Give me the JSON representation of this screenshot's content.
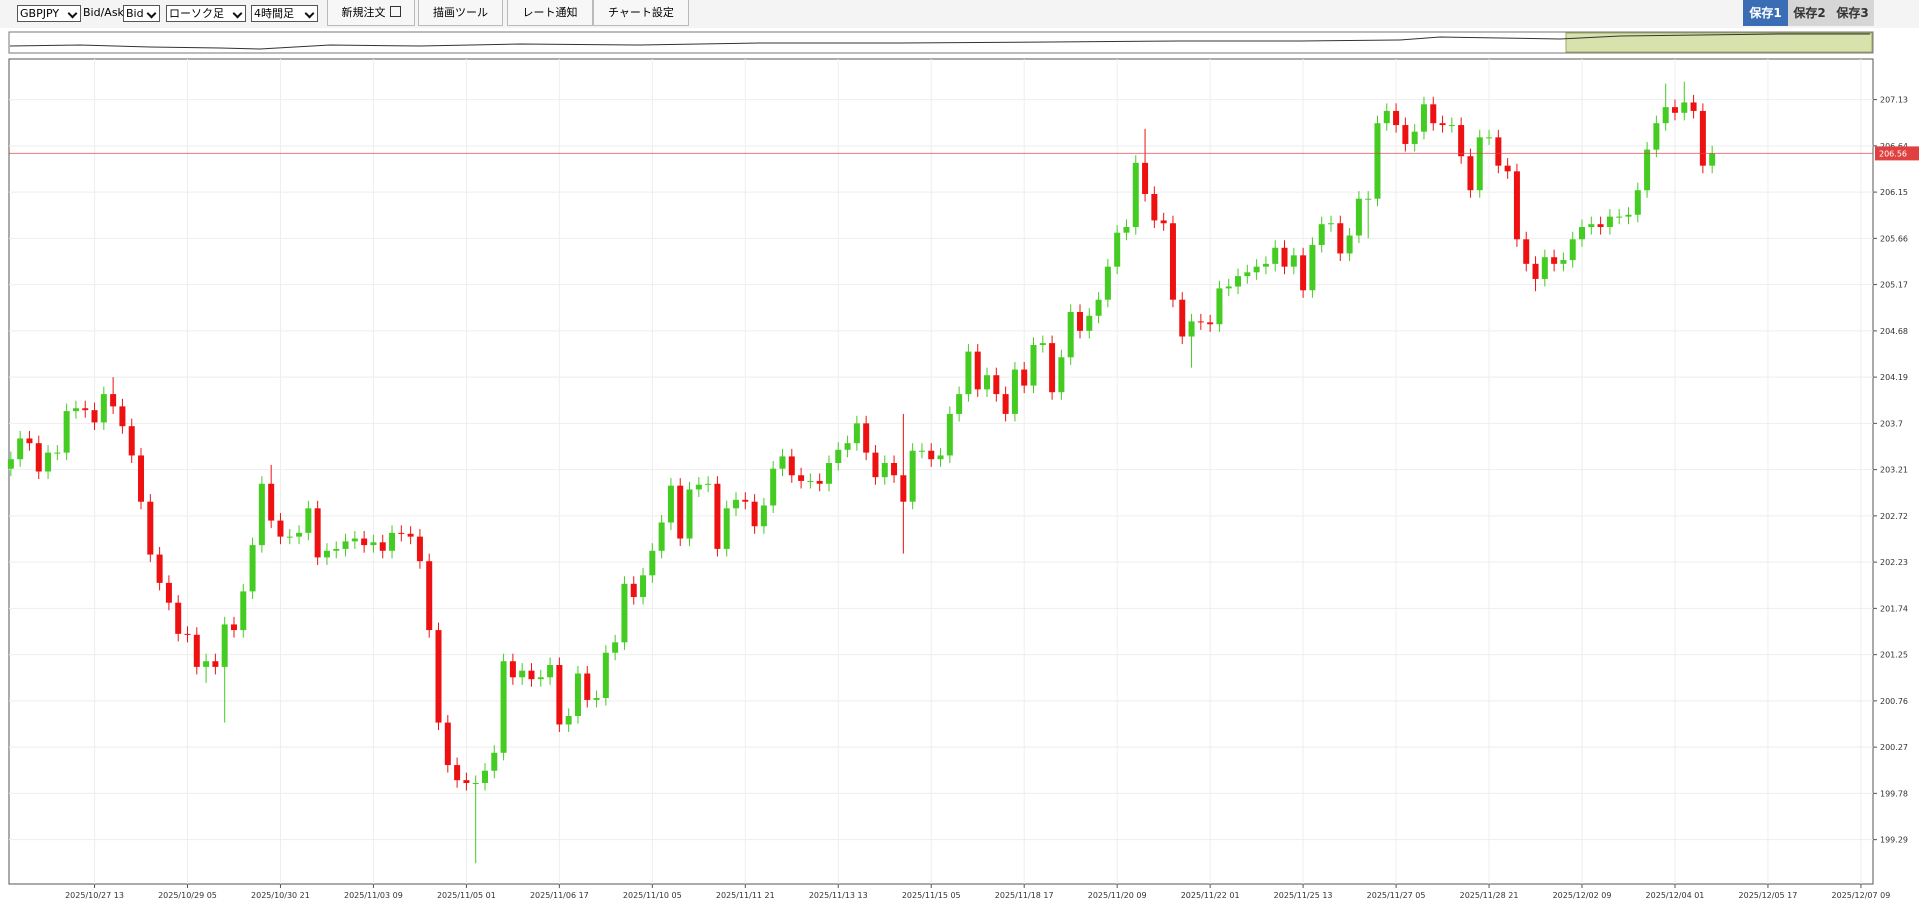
{
  "toolbar": {
    "symbol": "GBPJPY",
    "price_type_label": "Bid/Ask",
    "price_type": "Bid",
    "chart_style": "ローソク足",
    "timeframe": "4時間足",
    "buttons": [
      "新規注文",
      "描画ツール",
      "レート通知",
      "チャート設定"
    ],
    "saves": [
      "保存1",
      "保存2",
      "保存3"
    ]
  },
  "chart_data": {
    "type": "candlestick",
    "up_color": "#44cc22",
    "down_color": "#ee1111",
    "grid": true,
    "current_price": 206.56,
    "current_price_color": "#e04040",
    "ylim": [
      198.82,
      207.56
    ],
    "yticks": [
      199.29,
      199.78,
      200.27,
      200.76,
      201.25,
      201.74,
      202.23,
      202.72,
      203.21,
      203.7,
      204.19,
      204.68,
      205.17,
      205.66,
      206.15,
      206.64,
      207.13
    ],
    "xlim": [
      -0.2,
      200.3
    ],
    "xticks": [
      {
        "value": 9,
        "label": "2025/10/27 13"
      },
      {
        "value": 19,
        "label": "2025/10/29 05"
      },
      {
        "value": 29,
        "label": "2025/10/30 21"
      },
      {
        "value": 39,
        "label": "2025/11/03 09"
      },
      {
        "value": 49,
        "label": "2025/11/05 01"
      },
      {
        "value": 59,
        "label": "2025/11/06 17"
      },
      {
        "value": 69,
        "label": "2025/11/10 05"
      },
      {
        "value": 79,
        "label": "2025/11/11 21"
      },
      {
        "value": 89,
        "label": "2025/11/13 13"
      },
      {
        "value": 99,
        "label": "2025/11/15 05"
      },
      {
        "value": 109,
        "label": "2025/11/18 17"
      },
      {
        "value": 119,
        "label": "2025/11/20 09"
      },
      {
        "value": 129,
        "label": "2025/11/22 01"
      },
      {
        "value": 139,
        "label": "2025/11/25 13"
      },
      {
        "value": 149,
        "label": "2025/11/27 05"
      },
      {
        "value": 159,
        "label": "2025/11/28 21"
      },
      {
        "value": 169,
        "label": "2025/12/02 09"
      },
      {
        "value": 179,
        "label": "2025/12/04 01"
      },
      {
        "value": 189,
        "label": "2025/12/05 17"
      },
      {
        "value": 199,
        "label": "2025/12/07 09"
      }
    ],
    "open": [
      203.22,
      203.32,
      203.54,
      203.49,
      203.19,
      203.39,
      203.39,
      203.83,
      203.86,
      203.84,
      203.71,
      204.01,
      203.88,
      203.67,
      203.36,
      202.87,
      202.31,
      202.01,
      201.8,
      201.47,
      201.46,
      201.12,
      201.18,
      201.12,
      201.57,
      201.51,
      201.92,
      202.41,
      203.06,
      202.67,
      202.5,
      202.5,
      202.54,
      202.8,
      202.28,
      202.35,
      202.37,
      202.45,
      202.48,
      202.41,
      202.44,
      202.35,
      202.54,
      202.53,
      202.5,
      202.24,
      201.51,
      200.53,
      200.08,
      199.92,
      199.89,
      199.89,
      200.02,
      200.21,
      201.18,
      201.01,
      201.08,
      200.99,
      201.01,
      201.14,
      200.51,
      200.6,
      201.05,
      200.77,
      200.79,
      201.27,
      201.38,
      202.0,
      201.86,
      202.09,
      202.35,
      202.65,
      203.04,
      202.48,
      203.0,
      203.05,
      203.06,
      202.37,
      202.8,
      202.89,
      202.87,
      202.61,
      202.83,
      203.22,
      203.35,
      203.15,
      203.09,
      203.09,
      203.06,
      203.28,
      203.42,
      203.49,
      203.7,
      203.39,
      203.13,
      203.28,
      203.15,
      202.87,
      203.41,
      203.41,
      203.32,
      203.36,
      203.8,
      204.01,
      204.46,
      204.06,
      204.21,
      204.01,
      203.8,
      204.27,
      204.1,
      204.53,
      204.55,
      204.03,
      204.4,
      204.88,
      204.68,
      204.84,
      205.01,
      205.36,
      205.72,
      205.78,
      206.46,
      206.13,
      205.85,
      205.82,
      205.01,
      204.62,
      204.78,
      204.77,
      204.75,
      205.13,
      205.15,
      205.26,
      205.3,
      205.36,
      205.39,
      205.56,
      205.36,
      205.48,
      205.11,
      205.59,
      205.81,
      205.82,
      205.5,
      205.69,
      206.08,
      206.08,
      206.88,
      207.01,
      206.86,
      206.66,
      206.79,
      207.08,
      206.88,
      206.86,
      206.86,
      206.53,
      206.17,
      206.73,
      206.73,
      206.43,
      206.37,
      205.65,
      205.39,
      205.23,
      205.46,
      205.39,
      205.43,
      205.65,
      205.78,
      205.81,
      205.78,
      205.89,
      205.89,
      205.91,
      206.17,
      206.6,
      206.88,
      207.05,
      206.99,
      207.1,
      207.01,
      206.43
    ],
    "high": [
      203.4,
      203.62,
      203.62,
      203.57,
      203.47,
      203.47,
      203.91,
      203.94,
      203.94,
      203.92,
      204.09,
      204.19,
      203.96,
      203.75,
      203.44,
      202.95,
      202.39,
      202.09,
      201.88,
      201.55,
      201.54,
      201.26,
      201.26,
      201.65,
      201.65,
      202.0,
      202.49,
      203.14,
      203.26,
      202.75,
      202.58,
      202.62,
      202.88,
      202.88,
      202.43,
      202.45,
      202.53,
      202.56,
      202.56,
      202.52,
      202.52,
      202.62,
      202.62,
      202.61,
      202.58,
      202.32,
      201.59,
      200.61,
      200.16,
      200.0,
      199.97,
      200.1,
      200.29,
      201.26,
      201.26,
      201.16,
      201.16,
      201.09,
      201.22,
      201.22,
      200.68,
      201.13,
      201.13,
      200.87,
      201.35,
      201.46,
      202.08,
      202.08,
      202.17,
      202.43,
      202.73,
      203.12,
      203.12,
      203.08,
      203.13,
      203.14,
      203.14,
      202.88,
      202.97,
      202.97,
      202.95,
      202.91,
      203.3,
      203.43,
      203.43,
      203.23,
      203.17,
      203.17,
      203.36,
      203.5,
      203.57,
      203.78,
      203.78,
      203.47,
      203.36,
      203.36,
      203.8,
      203.49,
      203.49,
      203.49,
      203.44,
      203.88,
      204.09,
      204.54,
      204.54,
      204.29,
      204.29,
      204.09,
      204.35,
      204.35,
      204.61,
      204.63,
      204.63,
      204.48,
      204.96,
      204.96,
      204.92,
      205.09,
      205.44,
      205.8,
      205.86,
      206.54,
      206.82,
      206.21,
      205.93,
      205.9,
      205.09,
      204.86,
      204.86,
      204.85,
      205.21,
      205.23,
      205.34,
      205.38,
      205.44,
      205.47,
      205.64,
      205.64,
      205.56,
      205.56,
      205.67,
      205.89,
      205.9,
      205.9,
      205.77,
      206.16,
      206.16,
      206.96,
      207.09,
      207.09,
      206.94,
      206.87,
      207.16,
      207.16,
      206.96,
      206.94,
      206.94,
      206.61,
      206.81,
      206.81,
      206.81,
      206.51,
      206.45,
      205.73,
      205.47,
      205.54,
      205.54,
      205.51,
      205.73,
      205.86,
      205.89,
      205.89,
      205.97,
      205.97,
      205.99,
      206.25,
      206.68,
      206.96,
      207.3,
      207.13,
      207.32,
      207.18,
      207.09,
      206.64
    ],
    "low": [
      203.14,
      203.24,
      203.41,
      203.11,
      203.11,
      203.31,
      203.31,
      203.75,
      203.76,
      203.63,
      203.63,
      203.8,
      203.59,
      203.28,
      202.79,
      202.23,
      201.93,
      201.72,
      201.39,
      201.38,
      201.04,
      200.95,
      201.04,
      200.53,
      201.43,
      201.43,
      201.84,
      202.33,
      202.59,
      202.42,
      202.42,
      202.42,
      202.46,
      202.2,
      202.2,
      202.27,
      202.29,
      202.37,
      202.33,
      202.33,
      202.27,
      202.27,
      202.45,
      202.42,
      202.16,
      201.43,
      200.45,
      200.0,
      199.84,
      199.81,
      199.04,
      199.81,
      199.94,
      200.13,
      200.93,
      200.93,
      200.91,
      200.91,
      200.93,
      200.43,
      200.43,
      200.52,
      200.69,
      200.69,
      200.71,
      201.19,
      201.3,
      201.78,
      201.78,
      202.01,
      202.27,
      202.57,
      202.4,
      202.4,
      202.92,
      202.97,
      202.29,
      202.29,
      202.72,
      202.79,
      202.53,
      202.53,
      202.75,
      203.14,
      203.07,
      203.01,
      203.01,
      202.98,
      202.98,
      203.2,
      203.34,
      203.41,
      203.31,
      203.05,
      203.05,
      203.07,
      202.32,
      202.79,
      203.33,
      203.24,
      203.24,
      203.28,
      203.72,
      203.93,
      203.98,
      203.98,
      203.93,
      203.72,
      203.72,
      204.02,
      204.02,
      204.45,
      203.95,
      203.95,
      204.32,
      204.6,
      204.6,
      204.76,
      204.93,
      205.28,
      205.64,
      205.7,
      206.05,
      205.77,
      205.74,
      204.93,
      204.54,
      204.29,
      204.69,
      204.67,
      204.67,
      205.05,
      205.07,
      205.18,
      205.22,
      205.28,
      205.31,
      205.28,
      205.28,
      205.03,
      205.03,
      205.51,
      205.73,
      205.42,
      205.42,
      205.61,
      205.66,
      206.0,
      206.8,
      206.78,
      206.58,
      206.58,
      206.71,
      206.8,
      206.78,
      206.78,
      206.45,
      206.09,
      206.09,
      206.65,
      206.35,
      206.29,
      205.57,
      205.31,
      205.1,
      205.15,
      205.31,
      205.31,
      205.35,
      205.57,
      205.7,
      205.7,
      205.7,
      205.81,
      205.81,
      205.83,
      206.09,
      206.52,
      206.8,
      206.91,
      206.91,
      206.93,
      206.35,
      206.35
    ],
    "close": [
      203.32,
      203.54,
      203.49,
      203.19,
      203.39,
      203.39,
      203.83,
      203.86,
      203.84,
      203.71,
      204.01,
      203.88,
      203.67,
      203.36,
      202.87,
      202.31,
      202.01,
      201.8,
      201.47,
      201.46,
      201.12,
      201.18,
      201.12,
      201.57,
      201.51,
      201.92,
      202.41,
      203.06,
      202.67,
      202.5,
      202.5,
      202.54,
      202.8,
      202.28,
      202.35,
      202.37,
      202.45,
      202.48,
      202.41,
      202.44,
      202.35,
      202.54,
      202.53,
      202.5,
      202.24,
      201.51,
      200.53,
      200.08,
      199.92,
      199.89,
      199.89,
      200.02,
      200.21,
      201.18,
      201.01,
      201.08,
      200.99,
      201.01,
      201.14,
      200.51,
      200.6,
      201.05,
      200.77,
      200.79,
      201.27,
      201.38,
      202.0,
      201.86,
      202.09,
      202.35,
      202.65,
      203.04,
      202.48,
      203.0,
      203.05,
      203.06,
      202.37,
      202.8,
      202.89,
      202.87,
      202.61,
      202.83,
      203.22,
      203.35,
      203.15,
      203.09,
      203.09,
      203.06,
      203.28,
      203.42,
      203.49,
      203.7,
      203.39,
      203.13,
      203.28,
      203.15,
      202.87,
      203.41,
      203.41,
      203.32,
      203.36,
      203.8,
      204.01,
      204.46,
      204.06,
      204.21,
      204.01,
      203.8,
      204.27,
      204.1,
      204.53,
      204.55,
      204.03,
      204.4,
      204.88,
      204.68,
      204.84,
      205.01,
      205.36,
      205.72,
      205.78,
      206.46,
      206.13,
      205.85,
      205.82,
      205.01,
      204.62,
      204.78,
      204.77,
      204.75,
      205.13,
      205.15,
      205.26,
      205.3,
      205.36,
      205.39,
      205.56,
      205.36,
      205.48,
      205.11,
      205.59,
      205.81,
      205.82,
      205.5,
      205.69,
      206.08,
      206.08,
      206.88,
      207.01,
      206.86,
      206.66,
      206.79,
      207.08,
      206.88,
      206.86,
      206.86,
      206.53,
      206.17,
      206.73,
      206.73,
      206.43,
      206.37,
      205.65,
      205.39,
      205.23,
      205.46,
      205.39,
      205.43,
      205.65,
      205.78,
      205.81,
      205.78,
      205.89,
      205.89,
      205.91,
      206.17,
      206.6,
      206.88,
      207.05,
      206.99,
      207.1,
      207.01,
      206.43,
      206.56
    ]
  }
}
